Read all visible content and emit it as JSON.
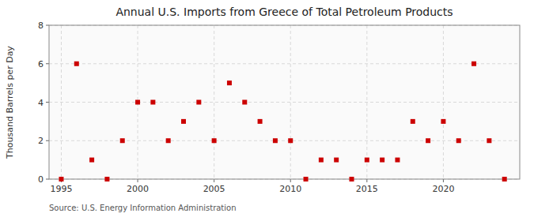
{
  "chart_data": {
    "type": "scatter",
    "title": "Annual U.S. Imports from Greece of Total Petroleum Products",
    "y_label": "Thousand Barrels per Day",
    "annotations": [
      "Source: U.S. Energy Information Administration"
    ],
    "x": [
      1995,
      1996,
      1997,
      1998,
      1999,
      2000,
      2001,
      2002,
      2003,
      2004,
      2005,
      2006,
      2007,
      2008,
      2009,
      2010,
      2011,
      2012,
      2013,
      2014,
      2015,
      2016,
      2017,
      2018,
      2019,
      2020,
      2021,
      2022,
      2023,
      2024
    ],
    "values": [
      0,
      6,
      1,
      0,
      2,
      4,
      4,
      2,
      3,
      4,
      2,
      5,
      4,
      3,
      2,
      2,
      0,
      1,
      1,
      0,
      1,
      1,
      1,
      3,
      2,
      3,
      2,
      6,
      2,
      0
    ],
    "color": "#cc0000",
    "marker": "square",
    "xlim": [
      1994.2,
      2025.0
    ],
    "xticks": [
      1995,
      2000,
      2005,
      2010,
      2015,
      2020
    ],
    "ylim": [
      0,
      8
    ],
    "yticks": [
      0,
      2,
      4,
      6,
      8
    ],
    "grid": true
  }
}
